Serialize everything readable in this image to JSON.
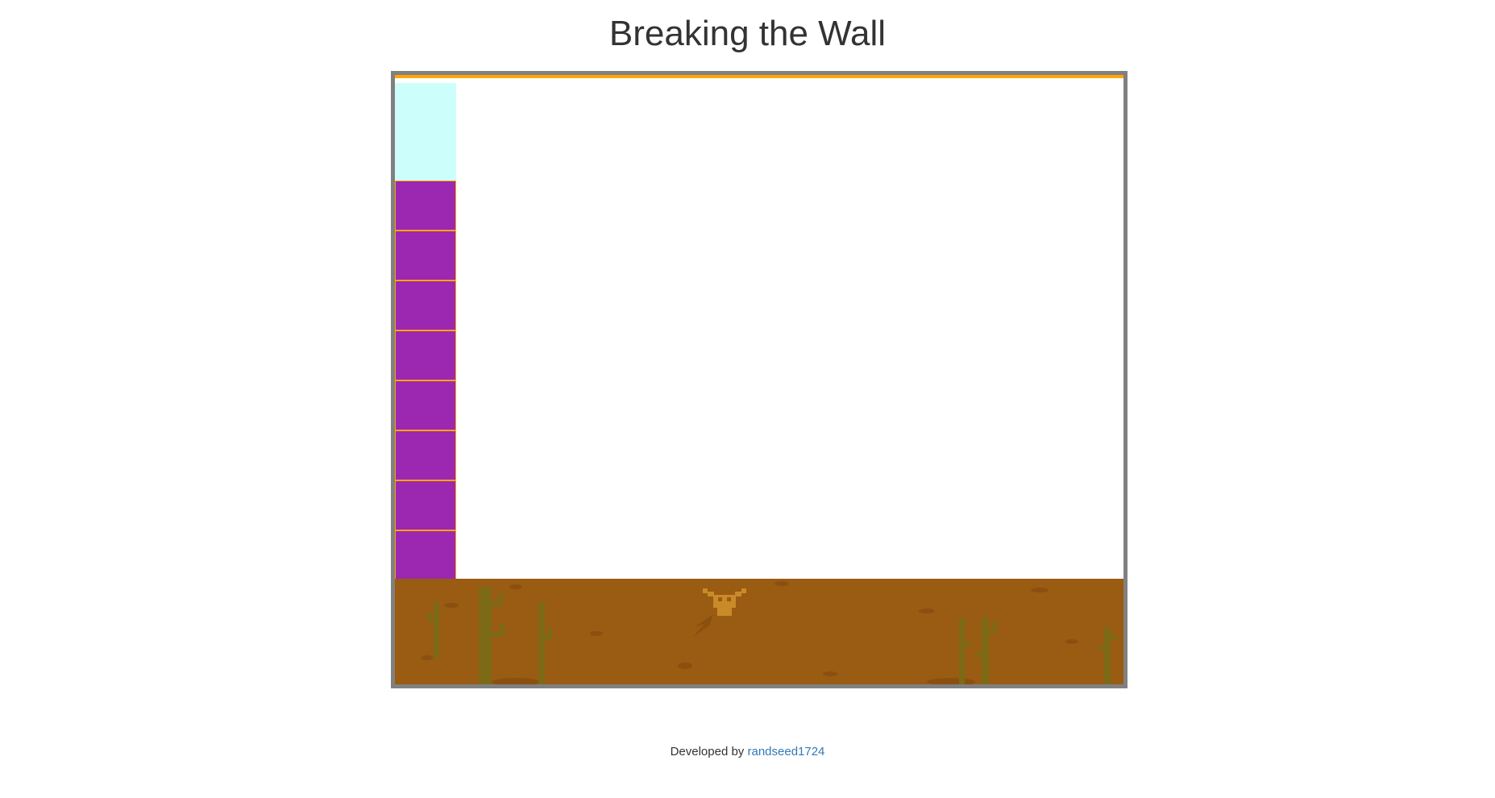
{
  "page": {
    "title": "Breaking the Wall"
  },
  "game": {
    "colors": {
      "frame_border": "#808080",
      "top_bar": "#ffa500",
      "sky_block": "#ccfffb",
      "brick_fill": "#9c27b0",
      "brick_border": "#ffa500",
      "ground": "#9a5b12",
      "cactus": "#7d6a16",
      "skull": "#c98a2a"
    },
    "bricks_remaining": 8,
    "decorations": [
      "cactus-icon",
      "cow-skull-icon",
      "rock-icon"
    ]
  },
  "footer": {
    "prefix": "Developed by",
    "author_link": "randseed1724"
  }
}
